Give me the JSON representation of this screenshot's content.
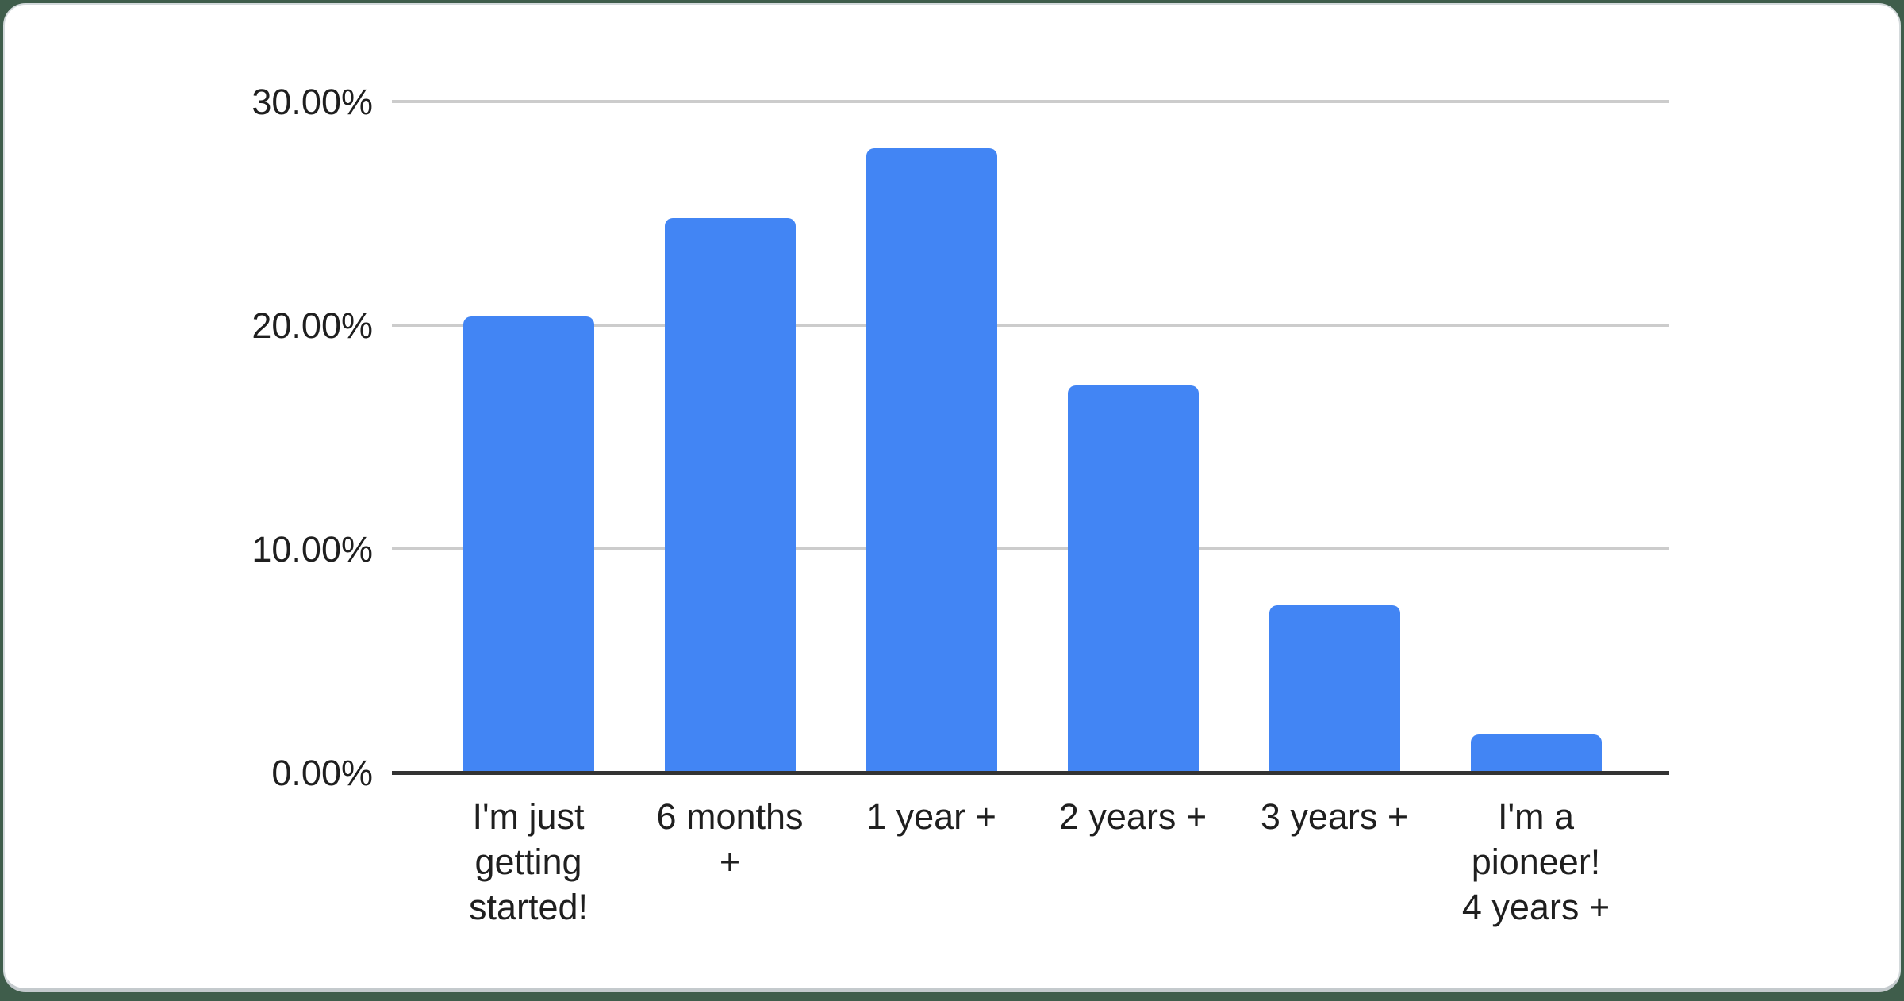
{
  "chart_data": {
    "type": "bar",
    "title": "",
    "xlabel": "",
    "ylabel": "",
    "categories": [
      "I'm just getting started!",
      "6 months +",
      "1 year +",
      "2 years +",
      "3 years +",
      "I'm a pioneer! 4 years +"
    ],
    "values": [
      20.4,
      24.8,
      27.9,
      17.3,
      7.5,
      1.7
    ],
    "x_tick_labels_wrapped": [
      "I'm just\ngetting\nstarted!",
      "6 months\n+",
      "1 year +",
      "2 years +",
      "3 years +",
      "I'm a\npioneer!\n4 years +"
    ],
    "ylim": [
      0,
      30
    ],
    "y_ticks": [
      0,
      10,
      20,
      30
    ],
    "y_tick_labels": [
      "0.00%",
      "10.00%",
      "20.00%",
      "30.00%"
    ],
    "grid": "horizontal-only",
    "legend": "none",
    "bar_color": "#4285f4"
  },
  "colors": {
    "bar": "#4285f4",
    "gridline": "#cccccc",
    "axis_line": "#333333",
    "axis_text": "#1f1f1f",
    "card_background": "#ffffff",
    "card_border": "#d4dadc",
    "page_background": "#3f5d4b"
  }
}
